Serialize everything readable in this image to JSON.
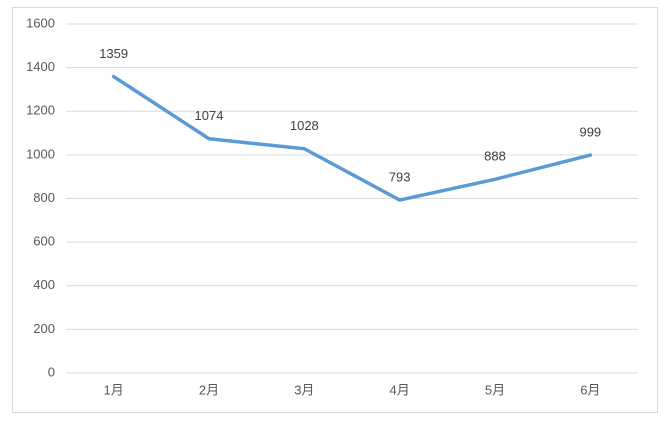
{
  "chart_data": {
    "type": "line",
    "categories": [
      "1月",
      "2月",
      "3月",
      "4月",
      "5月",
      "6月"
    ],
    "values": [
      1359,
      1074,
      1028,
      793,
      888,
      999
    ],
    "color": "#5b9bd5",
    "ylim": [
      0,
      1600
    ],
    "yticks": [
      0,
      200,
      400,
      600,
      800,
      1000,
      1200,
      1400,
      1600
    ],
    "grid": true,
    "data_labels": true
  }
}
